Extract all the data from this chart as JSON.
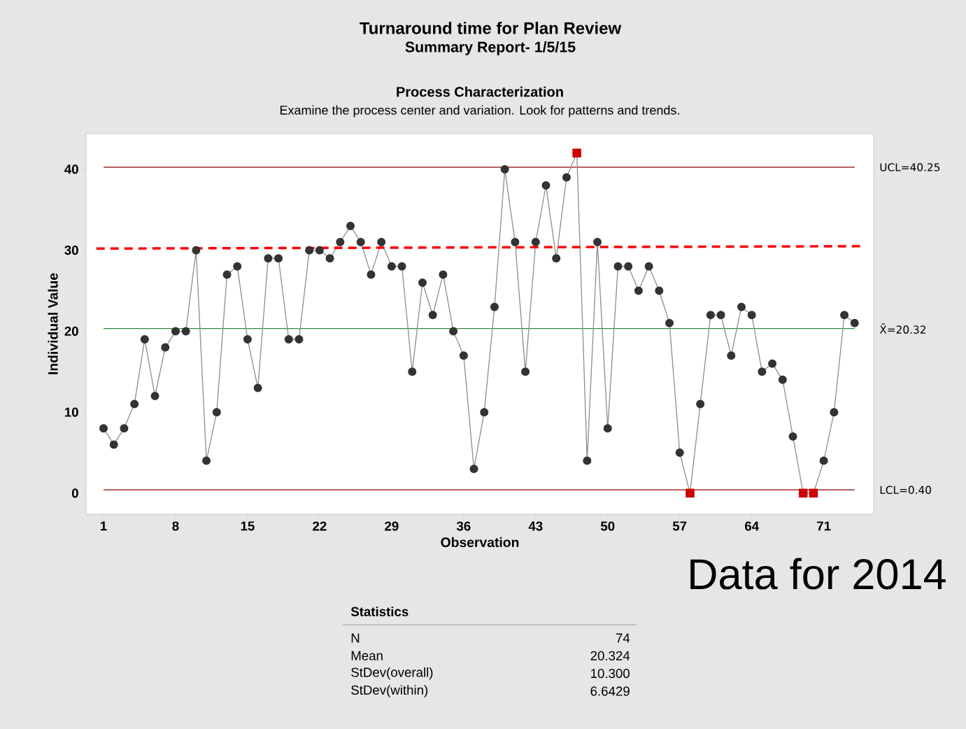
{
  "chart_data": {
    "type": "line",
    "title": "Turnaround time for Plan Review",
    "subtitle": "Summary Report- 1/5/15",
    "xlabel": "Observation",
    "ylabel": "Individual Value",
    "series": [
      {
        "color": "#333333",
        "marker": "circle",
        "x": [
          1,
          2,
          3,
          4,
          5,
          6,
          7,
          8,
          9,
          10,
          11,
          12,
          13,
          14,
          15,
          16,
          17,
          18,
          19,
          20,
          21,
          22,
          23,
          24,
          25,
          26,
          27,
          28,
          29,
          30,
          31,
          32,
          33,
          34,
          35,
          36,
          37,
          38,
          39,
          40,
          41,
          42,
          43,
          44,
          45,
          46,
          47,
          48,
          49,
          50,
          51,
          52,
          53,
          54,
          55,
          56,
          57,
          58,
          59,
          60,
          61,
          62,
          63,
          64,
          65,
          66,
          67,
          68,
          69,
          70,
          71,
          72,
          73,
          74
        ],
        "values": [
          8,
          6,
          8,
          11,
          19,
          12,
          18,
          20,
          20,
          30,
          4,
          10,
          27,
          28,
          19,
          13,
          29,
          29,
          19,
          19,
          30,
          30,
          29,
          31,
          33,
          31,
          27,
          31,
          28,
          28,
          15,
          26,
          22,
          27,
          20,
          17,
          3,
          10,
          23,
          40,
          31,
          15,
          31,
          38,
          29,
          39,
          42,
          4,
          31,
          8,
          28,
          28,
          25,
          28,
          25,
          21,
          5,
          0,
          11,
          22,
          22,
          17,
          23,
          22,
          15,
          16,
          14,
          7,
          0,
          0,
          4,
          10,
          22,
          21
        ]
      },
      {
        "color": "#ff0000",
        "line_style": "dashed",
        "marker": "none",
        "x": [
          0.3,
          74.6
        ],
        "values": [
          30.2,
          30.5
        ]
      },
      {
        "type": "scatter",
        "color": "#cc0000",
        "marker": "square",
        "x": [
          47,
          58,
          69,
          70
        ],
        "values": [
          42,
          0,
          0,
          0
        ]
      }
    ],
    "ref_lines": [
      {
        "axis": "y",
        "value": 40.25,
        "label": "UCL=40.25",
        "color": "#a52a2a"
      },
      {
        "axis": "y",
        "value": 20.32,
        "label": "X̄=20.32",
        "color": "#2e8b3e"
      },
      {
        "axis": "y",
        "value": 0.4,
        "label": "LCL=0.40",
        "color": "#a52a2a"
      }
    ],
    "xlim": [
      -0.7,
      75.85
    ],
    "ylim": [
      -2.6,
      44.4
    ],
    "xticks": [
      1,
      8,
      15,
      22,
      29,
      36,
      43,
      50,
      57,
      64,
      71
    ],
    "yticks": [
      0,
      10,
      20,
      30,
      40
    ],
    "annotations": [
      "Process Characterization",
      "Examine the process center and variation. Look for patterns and trends.",
      "Data for 2014",
      "Statistics",
      "N",
      "74",
      "Mean",
      "20.324",
      "StDev(overall)",
      "10.300",
      "StDev(within)",
      "6.6429"
    ]
  }
}
